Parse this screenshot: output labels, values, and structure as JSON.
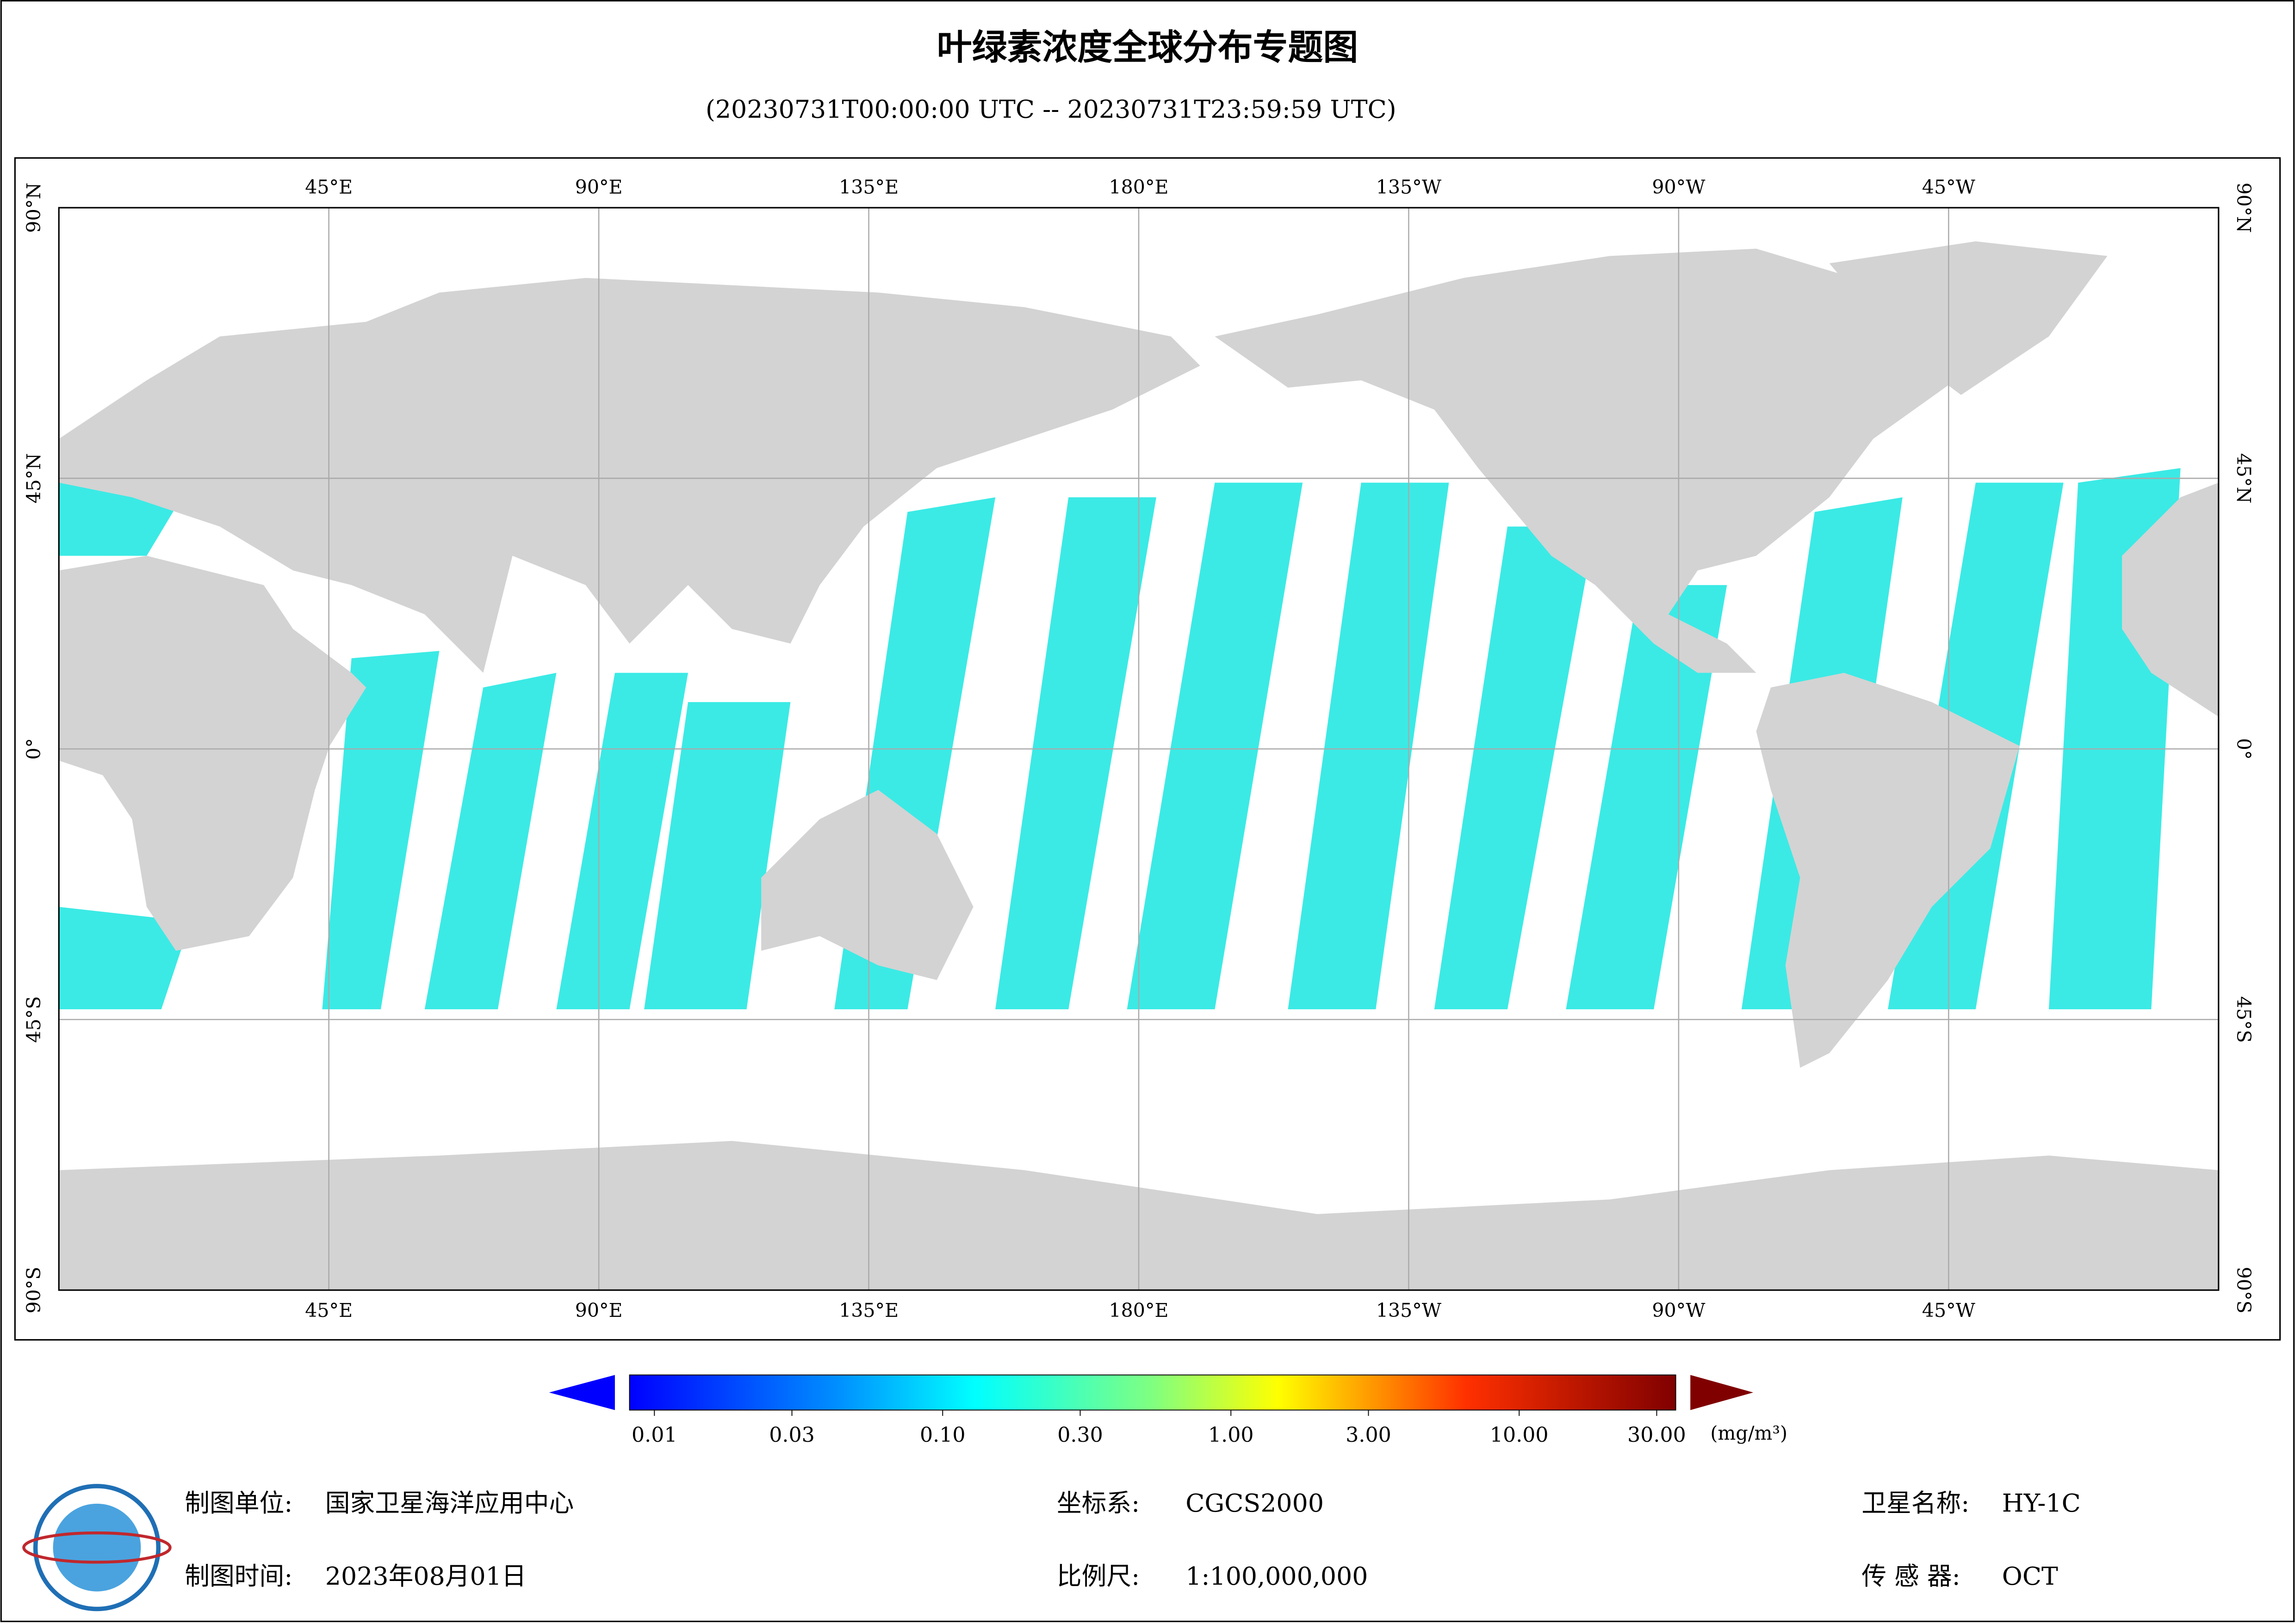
{
  "header": {
    "title": "叶绿素浓度全球分布专题图",
    "subtitle": "(20230731T00:00:00 UTC -- 20230731T23:59:59 UTC)"
  },
  "map": {
    "lon_ticks": [
      {
        "value": 45,
        "label": "45°E"
      },
      {
        "value": 90,
        "label": "90°E"
      },
      {
        "value": 135,
        "label": "135°E"
      },
      {
        "value": 180,
        "label": "180°E"
      },
      {
        "value": -135,
        "label": "135°W"
      },
      {
        "value": -90,
        "label": "90°W"
      },
      {
        "value": -45,
        "label": "45°W"
      }
    ],
    "lat_ticks": [
      {
        "value": 90,
        "label": "90°N"
      },
      {
        "value": 45,
        "label": "45°N"
      },
      {
        "value": 0,
        "label": "0°"
      },
      {
        "value": -45,
        "label": "45°S"
      },
      {
        "value": -90,
        "label": "90°S"
      }
    ]
  },
  "colorbar": {
    "ticks": [
      {
        "value": 0.01,
        "label": "0.01"
      },
      {
        "value": 0.03,
        "label": "0.03"
      },
      {
        "value": 0.1,
        "label": "0.10"
      },
      {
        "value": 0.3,
        "label": "0.30"
      },
      {
        "value": 1,
        "label": "1.00"
      },
      {
        "value": 3,
        "label": "3.00"
      },
      {
        "value": 10,
        "label": "10.00"
      },
      {
        "value": 30,
        "label": "30.00"
      }
    ],
    "unit": "(mg/m³)"
  },
  "footer": {
    "producer_label": "制图单位:",
    "producer": "国家卫星海洋应用中心",
    "date_label": "制图时间:",
    "date": "2023年08月01日",
    "crs_label": "坐标系:",
    "crs": "CGCS2000",
    "scale_label": "比例尺:",
    "scale": "1:100,000,000",
    "satellite_label": "卫星名称:",
    "satellite": "HY-1C",
    "sensor_label": "传 感 器:",
    "sensor": "OCT"
  }
}
